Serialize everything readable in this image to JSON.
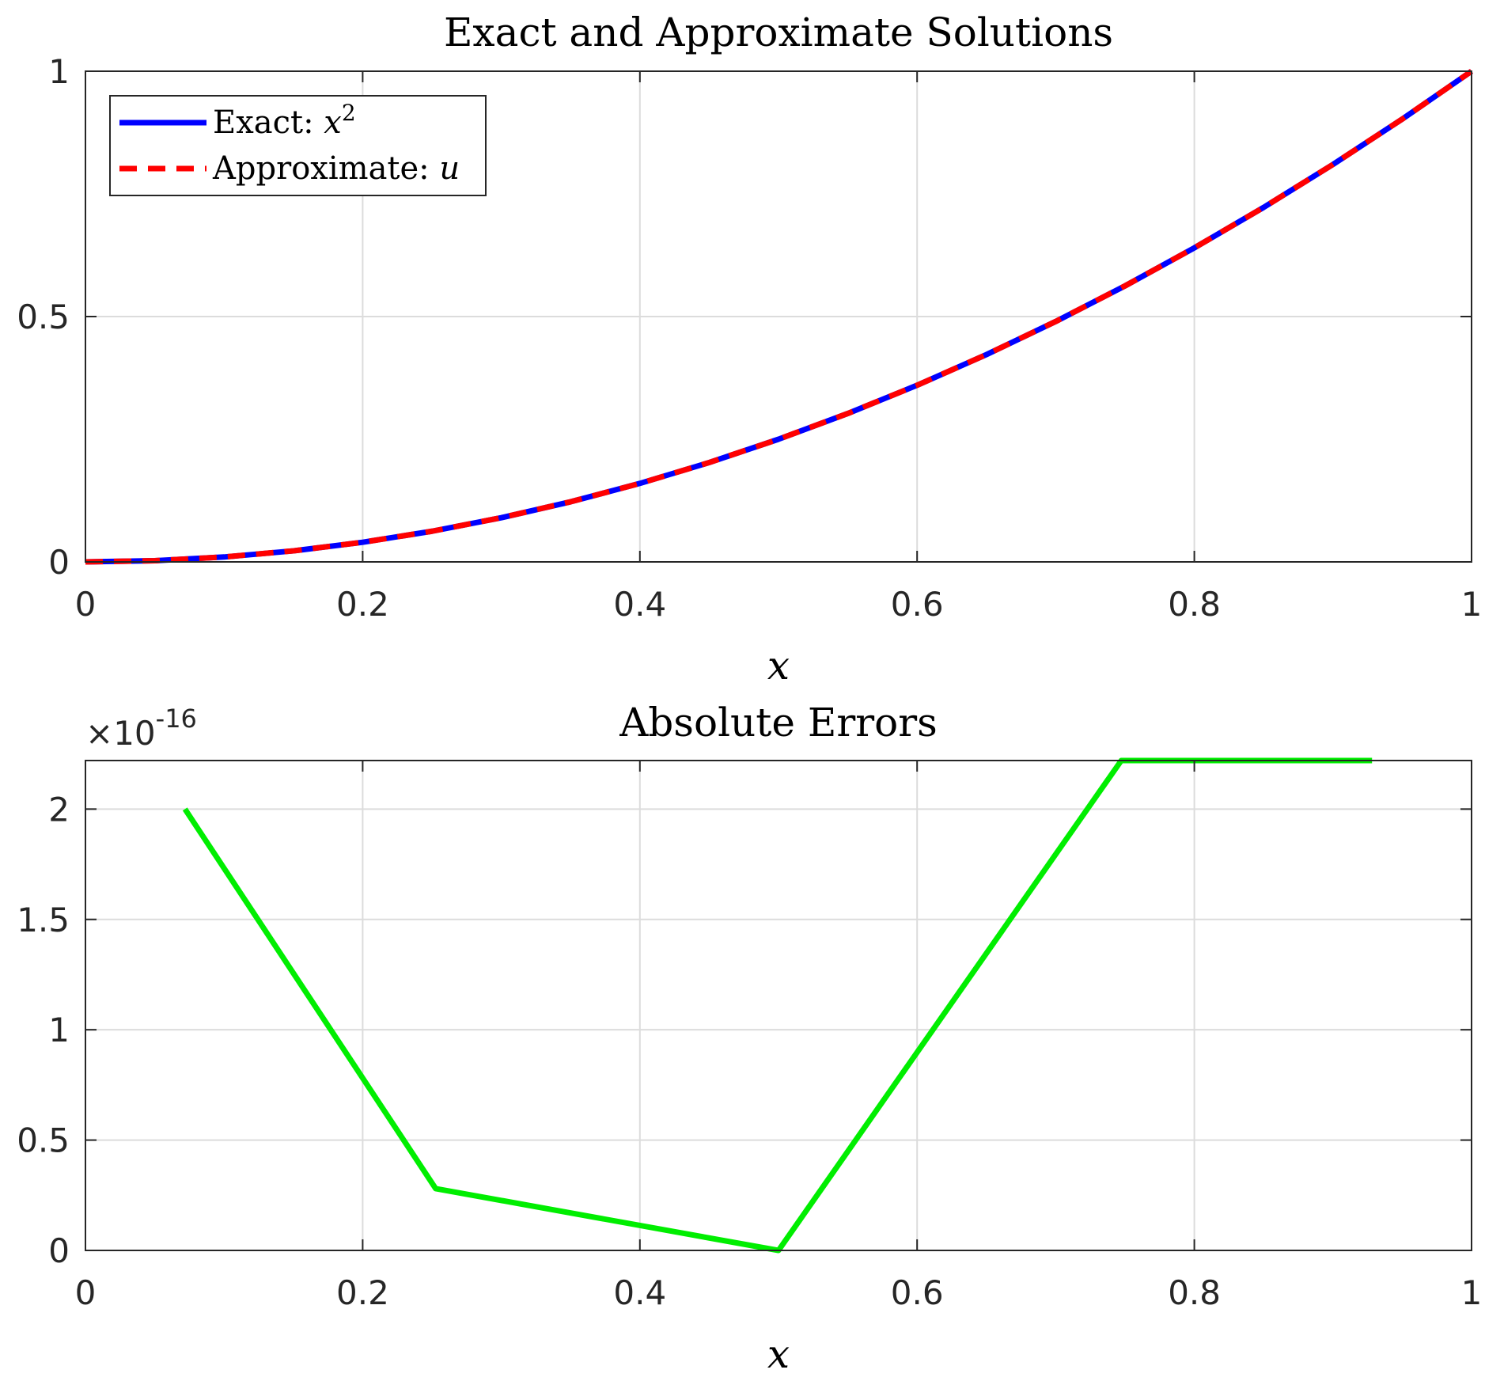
{
  "chart_data": [
    {
      "type": "line",
      "title": "Exact and Approximate Solutions",
      "xlabel": "x",
      "ylabel": "",
      "xlim": [
        0,
        1
      ],
      "ylim": [
        0,
        1
      ],
      "x_ticks": [
        0,
        0.2,
        0.4,
        0.6,
        0.8,
        1
      ],
      "x_tick_labels": [
        "0",
        "0.2",
        "0.4",
        "0.6",
        "0.8",
        "1"
      ],
      "y_ticks": [
        0,
        0.5,
        1
      ],
      "y_tick_labels": [
        "0",
        "0.5",
        "1"
      ],
      "grid": true,
      "legend_position": "top-left",
      "series": [
        {
          "name": "Exact: x²",
          "legend_prefix": "Exact: ",
          "legend_var": "x",
          "legend_sup": "2",
          "color": "#0000ff",
          "style": "solid",
          "x": [
            0,
            0.05,
            0.1,
            0.15,
            0.2,
            0.25,
            0.3,
            0.35,
            0.4,
            0.45,
            0.5,
            0.55,
            0.6,
            0.65,
            0.7,
            0.75,
            0.8,
            0.85,
            0.9,
            0.95,
            1
          ],
          "y": [
            0,
            0.0025,
            0.01,
            0.0225,
            0.04,
            0.0625,
            0.09,
            0.1225,
            0.16,
            0.2025,
            0.25,
            0.3025,
            0.36,
            0.4225,
            0.49,
            0.5625,
            0.64,
            0.7225,
            0.81,
            0.9025,
            1
          ]
        },
        {
          "name": "Approximate: u",
          "legend_prefix": "Approximate: ",
          "legend_var": "u",
          "legend_sup": "",
          "color": "#ff0000",
          "style": "dashed",
          "x": [
            0,
            0.05,
            0.1,
            0.15,
            0.2,
            0.25,
            0.3,
            0.35,
            0.4,
            0.45,
            0.5,
            0.55,
            0.6,
            0.65,
            0.7,
            0.75,
            0.8,
            0.85,
            0.9,
            0.95,
            1
          ],
          "y": [
            0,
            0.0025,
            0.01,
            0.0225,
            0.04,
            0.0625,
            0.09,
            0.1225,
            0.16,
            0.2025,
            0.25,
            0.3025,
            0.36,
            0.4225,
            0.49,
            0.5625,
            0.64,
            0.7225,
            0.81,
            0.9025,
            1
          ]
        }
      ]
    },
    {
      "type": "line",
      "title": "Absolute Errors",
      "xlabel": "x",
      "ylabel": "",
      "xlim": [
        0,
        1
      ],
      "ylim": [
        0,
        2.22e-16
      ],
      "exponent_label": "×10",
      "exponent_power": "-16",
      "x_ticks": [
        0,
        0.2,
        0.4,
        0.6,
        0.8,
        1
      ],
      "x_tick_labels": [
        "0",
        "0.2",
        "0.4",
        "0.6",
        "0.8",
        "1"
      ],
      "y_ticks": [
        0,
        5e-17,
        1e-16,
        1.5e-16,
        2e-16
      ],
      "y_tick_labels": [
        "0",
        "0.5",
        "1",
        "1.5",
        "2"
      ],
      "grid": true,
      "series": [
        {
          "color": "#00ee00",
          "style": "solid",
          "x": [
            0.0718,
            0.2527,
            0.5,
            0.7473,
            0.9282
          ],
          "y": [
            2e-16,
            2.8e-17,
            0,
            2.22e-16,
            2.22e-16
          ]
        }
      ]
    }
  ]
}
